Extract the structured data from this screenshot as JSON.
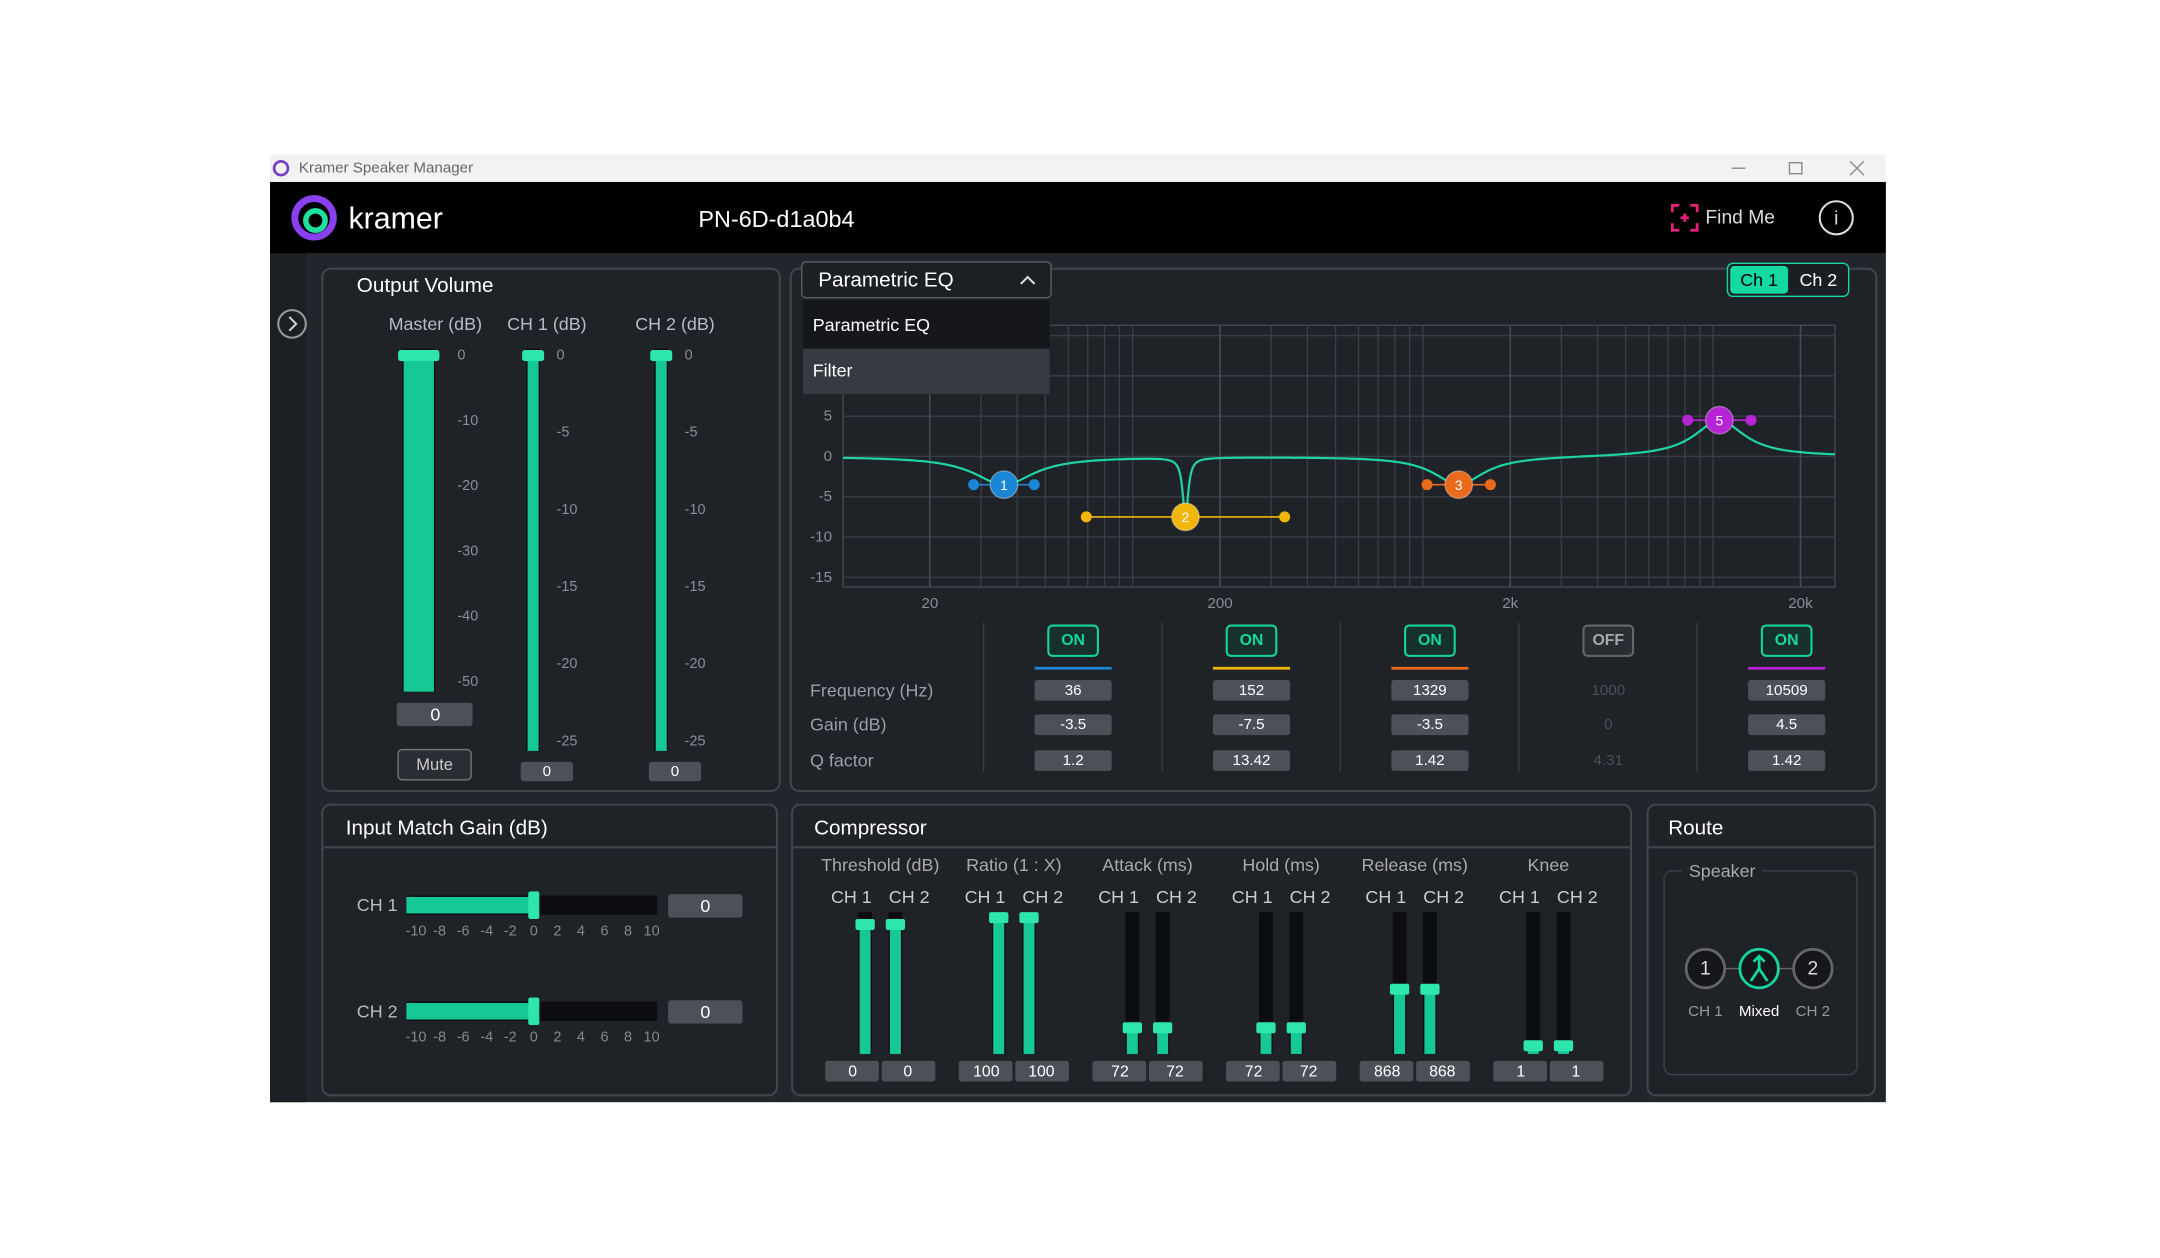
{
  "window": {
    "title": "Kramer Speaker Manager"
  },
  "header": {
    "brand": "kramer",
    "device": "PN-6D-d1a0b4",
    "find_me": "Find Me",
    "info": "i"
  },
  "output_volume": {
    "title": "Output Volume",
    "mute": "Mute",
    "faders": [
      {
        "label": "Master (dB)",
        "ticks": [
          0,
          -10,
          -20,
          -30,
          -40,
          -50
        ],
        "value": 0
      },
      {
        "label": "CH 1 (dB)",
        "ticks": [
          0,
          -5,
          -10,
          -15,
          -20,
          -25
        ],
        "value": 0
      },
      {
        "label": "CH 2 (dB)",
        "ticks": [
          0,
          -5,
          -10,
          -15,
          -20,
          -25
        ],
        "value": 0
      }
    ]
  },
  "eq": {
    "mode": "Parametric EQ",
    "options": [
      "Parametric EQ",
      "Filter"
    ],
    "channels": [
      "Ch 1",
      "Ch 2"
    ],
    "chart": {
      "type": "line",
      "log_x": true,
      "yticks": [
        5,
        0,
        -5,
        -10,
        -15
      ],
      "xticks": [
        20,
        200,
        {
          "value": 2000,
          "label": "2k"
        },
        {
          "value": 20000,
          "label": "20k"
        }
      ],
      "curve_color": "#1fd3a4"
    },
    "row_labels": [
      "Frequency (Hz)",
      "Gain (dB)",
      "Q factor"
    ],
    "bands": [
      {
        "state": "ON",
        "color": "#1b86d6",
        "handle": "1",
        "frequency": 36,
        "gain": -3.5,
        "q": 1.2
      },
      {
        "state": "ON",
        "color": "#f1b60a",
        "handle": "2",
        "frequency": 152,
        "gain": -7.5,
        "q": 13.42
      },
      {
        "state": "ON",
        "color": "#ea6a1c",
        "handle": "3",
        "frequency": 1329,
        "gain": -3.5,
        "q": 1.42
      },
      {
        "state": "OFF",
        "color": "#4c5058",
        "frequency": 1000,
        "gain": 0,
        "q": 4.31
      },
      {
        "state": "ON",
        "color": "#b624d6",
        "handle": "5",
        "frequency": 10509,
        "gain": 4.5,
        "q": 1.42
      }
    ]
  },
  "input_gain": {
    "title": "Input Match Gain (dB)",
    "scale": [
      -10,
      -8,
      -6,
      -4,
      -2,
      0,
      2,
      4,
      6,
      8,
      10
    ],
    "channels": [
      {
        "label": "CH 1",
        "value": 0
      },
      {
        "label": "CH 2",
        "value": 0
      }
    ]
  },
  "compressor": {
    "title": "Compressor",
    "params": [
      {
        "name": "Threshold (dB)",
        "channels": [
          "CH 1",
          "CH 2"
        ],
        "values": [
          0,
          0
        ]
      },
      {
        "name": "Ratio (1 : X)",
        "channels": [
          "CH 1",
          "CH 2"
        ],
        "values": [
          100,
          100
        ]
      },
      {
        "name": "Attack (ms)",
        "channels": [
          "CH 1",
          "CH 2"
        ],
        "values": [
          72,
          72
        ]
      },
      {
        "name": "Hold (ms)",
        "channels": [
          "CH 1",
          "CH 2"
        ],
        "values": [
          72,
          72
        ]
      },
      {
        "name": "Release (ms)",
        "channels": [
          "CH 1",
          "CH 2"
        ],
        "values": [
          868,
          868
        ]
      },
      {
        "name": "Knee",
        "channels": [
          "CH 1",
          "CH 2"
        ],
        "values": [
          1,
          1
        ]
      }
    ]
  },
  "route": {
    "title": "Route",
    "group": "Speaker",
    "options": [
      {
        "icon": "1",
        "label": "CH 1"
      },
      {
        "label": "Mixed"
      },
      {
        "icon": "2",
        "label": "CH 2"
      }
    ]
  }
}
